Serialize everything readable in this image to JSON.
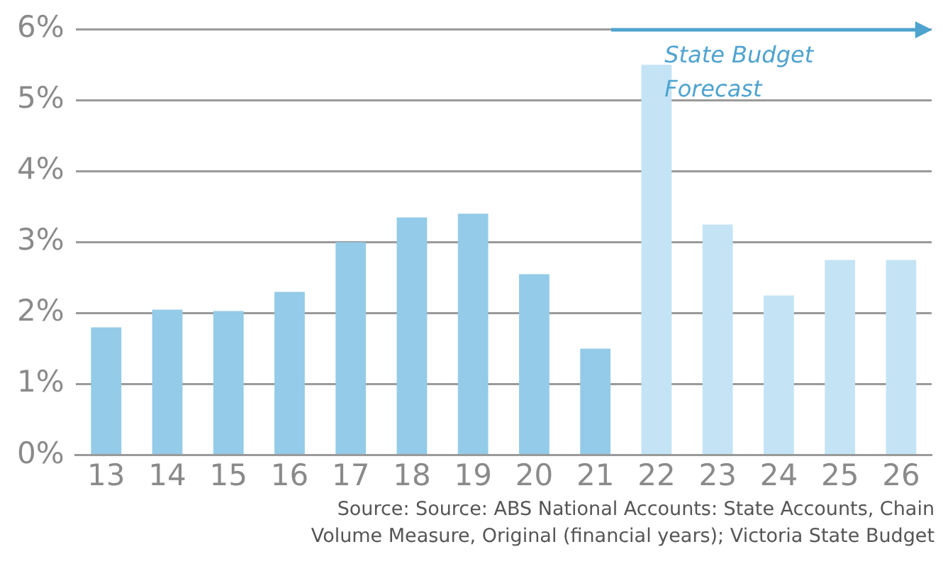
{
  "chart_data": {
    "type": "bar",
    "categories": [
      "13",
      "14",
      "15",
      "16",
      "17",
      "18",
      "19",
      "20",
      "21",
      "22",
      "23",
      "24",
      "25",
      "26"
    ],
    "values": [
      1.8,
      2.05,
      2.03,
      2.3,
      3.0,
      3.35,
      3.4,
      2.55,
      1.5,
      5.5,
      3.25,
      2.25,
      2.75,
      2.75
    ],
    "colors": [
      "#93cbe8",
      "#93cbe8",
      "#93cbe8",
      "#93cbe8",
      "#93cbe8",
      "#93cbe8",
      "#93cbe8",
      "#93cbe8",
      "#93cbe8",
      "#c4e4f5",
      "#c4e4f5",
      "#c4e4f5",
      "#c4e4f5",
      "#c4e4f5"
    ],
    "ylim": [
      0,
      6
    ],
    "yticks": [
      {
        "value": 0,
        "label": "0%"
      },
      {
        "value": 1,
        "label": "1%"
      },
      {
        "value": 2,
        "label": "2%"
      },
      {
        "value": 3,
        "label": "3%"
      },
      {
        "value": 4,
        "label": "4%"
      },
      {
        "value": 5,
        "label": "5%"
      },
      {
        "value": 6,
        "label": "6%"
      }
    ],
    "grid": "y",
    "legend": false,
    "annotations": [
      "State Budget Forecast",
      "Source:  Source: ABS National Accounts: State Accounts, Chain Volume Measure, Original (financial years); Victoria State Budget"
    ]
  }
}
